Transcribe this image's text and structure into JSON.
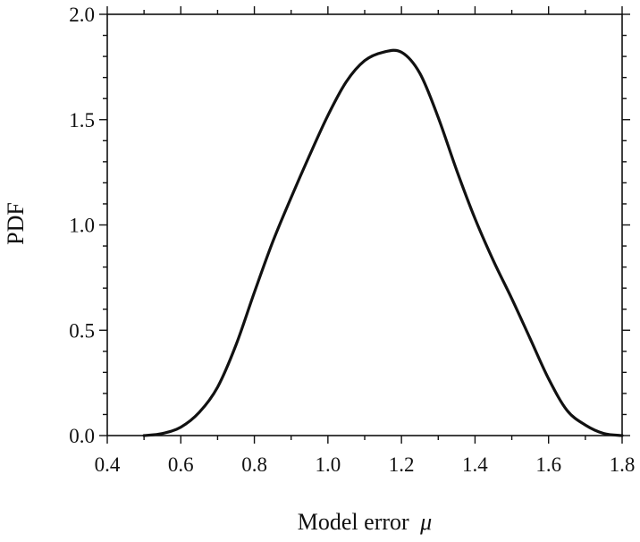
{
  "chart_data": {
    "type": "line",
    "title": "",
    "xlabel": "Model error",
    "xlabel_symbol": "μ",
    "ylabel": "PDF",
    "xlim": [
      0.4,
      1.8
    ],
    "ylim": [
      0.0,
      2.0
    ],
    "xticks": [
      "0.4",
      "0.6",
      "0.8",
      "1.0",
      "1.2",
      "1.4",
      "1.6",
      "1.8"
    ],
    "yticks": [
      "0.0",
      "0.5",
      "1.0",
      "1.5",
      "2.0"
    ],
    "grid": false,
    "legend": "none",
    "series": [
      {
        "color": "#111111",
        "x": [
          0.5,
          0.55,
          0.6,
          0.65,
          0.7,
          0.75,
          0.8,
          0.85,
          0.9,
          0.95,
          1.0,
          1.05,
          1.1,
          1.15,
          1.2,
          1.25,
          1.3,
          1.35,
          1.4,
          1.45,
          1.5,
          1.55,
          1.6,
          1.65,
          1.7,
          1.75,
          1.8
        ],
        "y": [
          0.0,
          0.01,
          0.04,
          0.11,
          0.23,
          0.43,
          0.68,
          0.92,
          1.13,
          1.33,
          1.52,
          1.68,
          1.78,
          1.82,
          1.82,
          1.72,
          1.51,
          1.26,
          1.03,
          0.83,
          0.65,
          0.46,
          0.27,
          0.12,
          0.05,
          0.01,
          0.0
        ]
      }
    ]
  }
}
